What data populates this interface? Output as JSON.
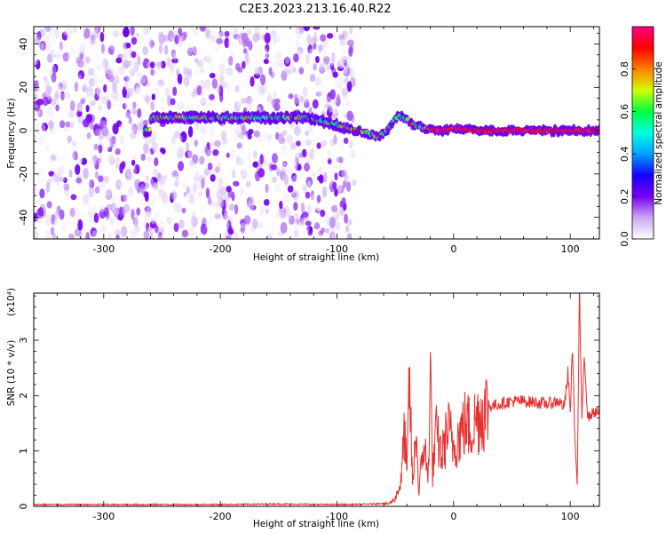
{
  "title": "C2E3.2023.213.16.40.R22",
  "chart_data": [
    {
      "type": "heatmap",
      "title": "C2E3.2023.213.16.40.R22",
      "xlabel": "Height of straight line (km)",
      "ylabel": "Frequency (Hz)",
      "xlim": [
        -360,
        125
      ],
      "ylim": [
        -50,
        48
      ],
      "x_ticks": [
        -300,
        -200,
        -100,
        0,
        100
      ],
      "y_ticks": [
        -40,
        -20,
        0,
        20,
        40
      ],
      "colorbar": {
        "label": "Normalized spectral amplitude",
        "range": [
          0.0,
          1.0
        ],
        "ticks": [
          0.0,
          0.2,
          0.4,
          0.6,
          0.8
        ],
        "colormap": [
          "#ffffff",
          "#c8a8f0",
          "#7a00f0",
          "#1400ff",
          "#00a0ff",
          "#00ffe0",
          "#00ff40",
          "#d0ff00",
          "#ff8000",
          "#ff0000",
          "#ff0080"
        ]
      },
      "regions": [
        {
          "name": "noise",
          "x": [
            -360,
            -85
          ],
          "frequency": [
            -50,
            48
          ],
          "amplitude": [
            0.0,
            0.2
          ]
        },
        {
          "name": "signal-band",
          "x": [
            -265,
            -125
          ],
          "frequency_center": 6,
          "amplitude": [
            0.3,
            0.85
          ]
        },
        {
          "name": "descending-signal",
          "x": [
            -85,
            110
          ],
          "frequency_center": 0,
          "amplitude": [
            0.3,
            1.0
          ]
        }
      ],
      "signal_center_points": [
        {
          "x": -260,
          "y": 6
        },
        {
          "x": -200,
          "y": 6
        },
        {
          "x": -150,
          "y": 6
        },
        {
          "x": -125,
          "y": 6
        },
        {
          "x": -90,
          "y": 1
        },
        {
          "x": -80,
          "y": 0
        },
        {
          "x": -65,
          "y": -3
        },
        {
          "x": -57,
          "y": 0
        },
        {
          "x": -50,
          "y": 6
        },
        {
          "x": -45,
          "y": 7
        },
        {
          "x": -35,
          "y": 3
        },
        {
          "x": -25,
          "y": 1
        },
        {
          "x": -10,
          "y": 0
        },
        {
          "x": 0,
          "y": 1
        },
        {
          "x": 20,
          "y": 0
        },
        {
          "x": 60,
          "y": 0
        },
        {
          "x": 100,
          "y": 0
        },
        {
          "x": 125,
          "y": 0
        }
      ]
    },
    {
      "type": "line",
      "xlabel": "Height of straight line (km)",
      "ylabel": "SNR (10 * v/v)",
      "y_multiplier": "(x10⁴)",
      "xlim": [
        -360,
        125
      ],
      "ylim": [
        0,
        3.85
      ],
      "x_ticks": [
        -300,
        -200,
        -100,
        0,
        100
      ],
      "y_ticks": [
        0,
        1,
        2,
        3
      ],
      "color": "#e83030",
      "series": [
        {
          "x": [
            -360,
            -300,
            -200,
            -150,
            -110,
            -90,
            -70,
            -55,
            -50,
            -45,
            -42,
            -40,
            -38,
            -35,
            -32,
            -30,
            -25,
            -22,
            -20,
            -18,
            -15,
            -10,
            -5,
            0,
            5,
            10,
            15,
            20,
            30,
            40,
            50,
            60,
            70,
            80,
            90,
            95,
            98,
            100,
            102,
            104,
            106,
            108,
            110,
            112,
            115,
            120,
            125
          ],
          "values": [
            0.02,
            0.02,
            0.02,
            0.03,
            0.02,
            0.02,
            0.03,
            0.05,
            0.15,
            0.45,
            1.4,
            0.5,
            2.3,
            0.35,
            1.5,
            0.25,
            1.2,
            0.4,
            2.5,
            0.6,
            1.3,
            0.9,
            1.4,
            1.1,
            1.3,
            1.5,
            1.4,
            1.6,
            1.8,
            1.85,
            1.9,
            1.9,
            1.88,
            1.85,
            1.9,
            1.8,
            2.4,
            1.7,
            2.9,
            1.2,
            0.4,
            3.9,
            1.5,
            2.8,
            1.6,
            1.7,
            1.7
          ]
        }
      ]
    }
  ]
}
